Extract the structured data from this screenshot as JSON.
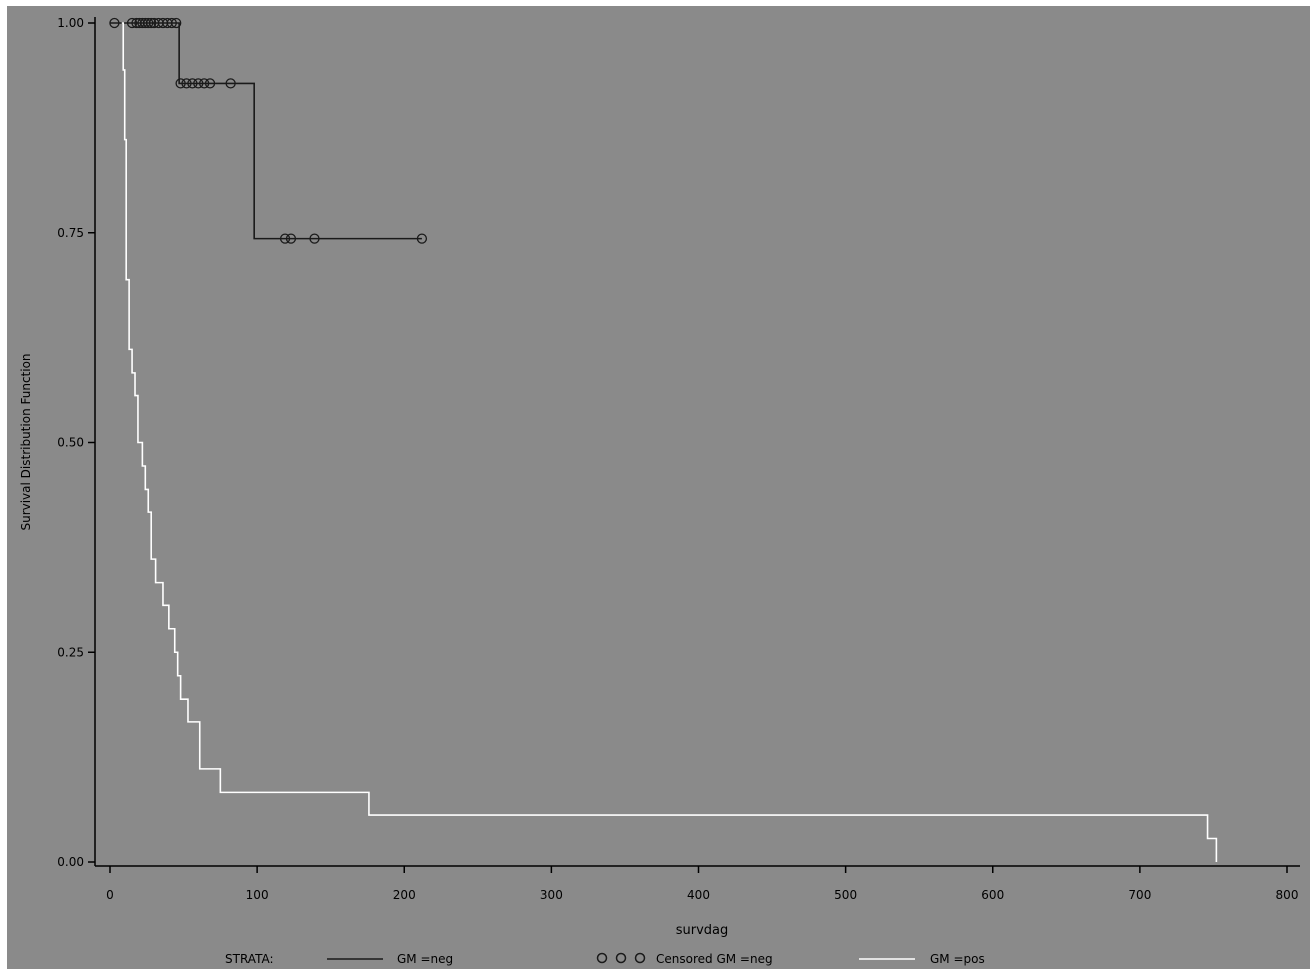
{
  "chart_data": {
    "type": "line",
    "chart_subtype": "kaplan-meier step",
    "xlabel": "survdag",
    "ylabel": "Survival Distribution Function",
    "xlim": [
      0,
      800
    ],
    "ylim": [
      0,
      1.0
    ],
    "xticks": [
      0,
      100,
      200,
      300,
      400,
      500,
      600,
      700,
      800
    ],
    "yticks": [
      "0.00",
      "0.25",
      "0.50",
      "0.75",
      "1.00"
    ],
    "grid": false,
    "background": "#8a8a8a",
    "series": [
      {
        "name": "GM =neg",
        "color": "#1a1a1a",
        "steps": [
          [
            0,
            1.0
          ],
          [
            47,
            1.0
          ],
          [
            47,
            0.928
          ],
          [
            98,
            0.928
          ],
          [
            98,
            0.743
          ],
          [
            212,
            0.743
          ]
        ],
        "censored": [
          [
            3,
            1.0
          ],
          [
            15,
            1.0
          ],
          [
            18,
            1.0
          ],
          [
            20,
            1.0
          ],
          [
            22,
            1.0
          ],
          [
            24,
            1.0
          ],
          [
            26,
            1.0
          ],
          [
            28,
            1.0
          ],
          [
            30,
            1.0
          ],
          [
            33,
            1.0
          ],
          [
            36,
            1.0
          ],
          [
            39,
            1.0
          ],
          [
            42,
            1.0
          ],
          [
            45,
            1.0
          ],
          [
            48,
            0.928
          ],
          [
            52,
            0.928
          ],
          [
            56,
            0.928
          ],
          [
            60,
            0.928
          ],
          [
            64,
            0.928
          ],
          [
            68,
            0.928
          ],
          [
            82,
            0.928
          ],
          [
            119,
            0.743
          ],
          [
            123,
            0.743
          ],
          [
            139,
            0.743
          ],
          [
            212,
            0.743
          ]
        ]
      },
      {
        "name": "GM =pos",
        "color": "#ffffff",
        "steps": [
          [
            8,
            1.0
          ],
          [
            9,
            0.944
          ],
          [
            10,
            0.861
          ],
          [
            11,
            0.694
          ],
          [
            13,
            0.611
          ],
          [
            15,
            0.583
          ],
          [
            17,
            0.556
          ],
          [
            19,
            0.5
          ],
          [
            22,
            0.472
          ],
          [
            24,
            0.444
          ],
          [
            26,
            0.417
          ],
          [
            28,
            0.361
          ],
          [
            31,
            0.333
          ],
          [
            36,
            0.306
          ],
          [
            40,
            0.278
          ],
          [
            44,
            0.25
          ],
          [
            46,
            0.222
          ],
          [
            48,
            0.194
          ],
          [
            53,
            0.167
          ],
          [
            61,
            0.111
          ],
          [
            75,
            0.083
          ],
          [
            176,
            0.056
          ],
          [
            746,
            0.028
          ],
          [
            752,
            0.0
          ]
        ]
      }
    ],
    "legend": {
      "title": "STRATA:",
      "items": [
        {
          "label": "GM =neg",
          "kind": "line",
          "color": "#1a1a1a"
        },
        {
          "label": "Censored GM =neg",
          "kind": "markers",
          "color": "#1a1a1a"
        },
        {
          "label": "GM =pos",
          "kind": "line",
          "color": "#ffffff"
        }
      ],
      "position": "bottom"
    }
  }
}
